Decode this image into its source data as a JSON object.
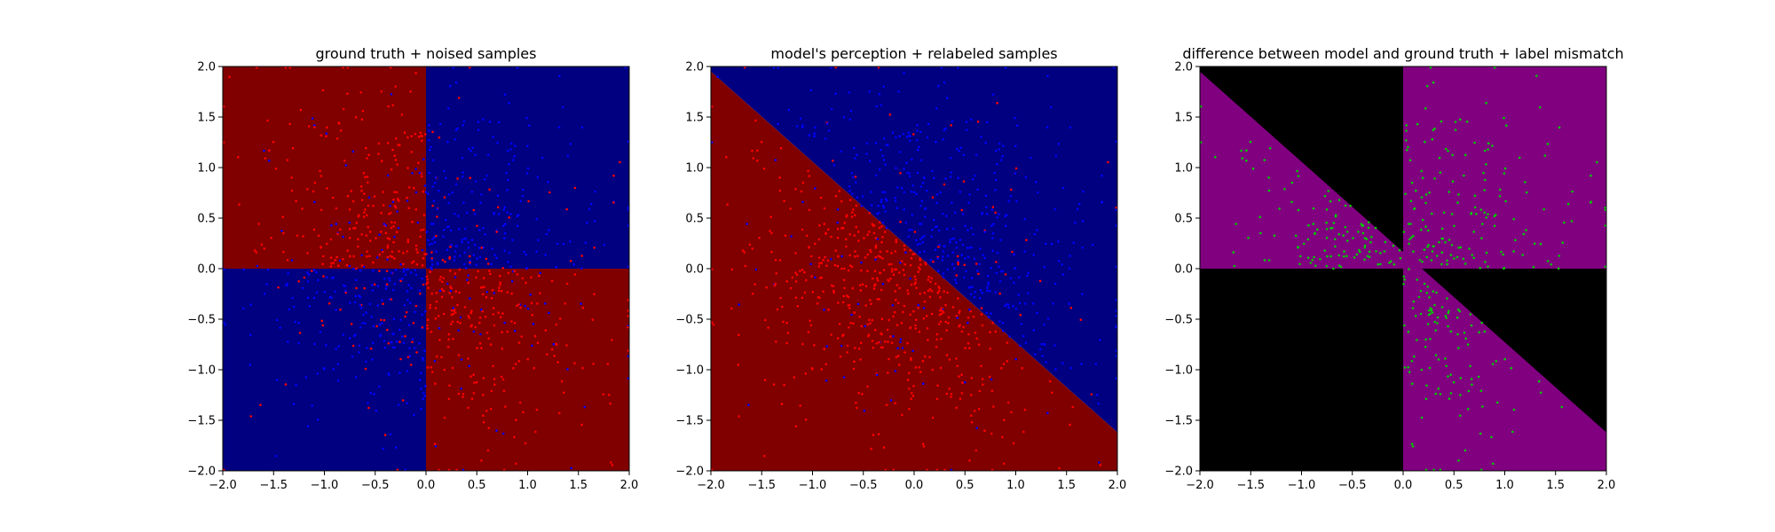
{
  "chart_data": [
    {
      "type": "scatter",
      "title": "ground truth + noised samples",
      "xlim": [
        -2.0,
        2.0
      ],
      "ylim": [
        -2.0,
        2.0
      ],
      "x_ticks": [
        "−2.0",
        "−1.5",
        "−1.0",
        "−0.5",
        "0.0",
        "0.5",
        "1.0",
        "1.5",
        "2.0"
      ],
      "y_ticks": [
        "−2.0",
        "−1.5",
        "−1.0",
        "−0.5",
        "0.0",
        "0.5",
        "1.0",
        "1.5",
        "2.0"
      ],
      "background": "xor quadrants: red where x*y<0, blue where x*y>0",
      "regions": [
        {
          "rule": "x<0,y>0",
          "color": "#800000"
        },
        {
          "rule": "x>0,y>0",
          "color": "#000080"
        },
        {
          "rule": "x<0,y<0",
          "color": "#000080"
        },
        {
          "rule": "x>0,y<0",
          "color": "#800000"
        }
      ],
      "point_colors": {
        "class_a": "#ff0000",
        "class_b": "#0000ff"
      },
      "n_points": 1000,
      "grid": false,
      "legend": "none"
    },
    {
      "type": "scatter",
      "title": "model's perception + relabeled samples",
      "xlim": [
        -2.0,
        2.0
      ],
      "ylim": [
        -2.0,
        2.0
      ],
      "x_ticks": [
        "−2.0",
        "−1.5",
        "−1.0",
        "−0.5",
        "0.0",
        "0.5",
        "1.0",
        "1.5",
        "2.0"
      ],
      "y_ticks": [
        "−2.0",
        "−1.5",
        "−1.0",
        "−0.5",
        "0.0",
        "0.5",
        "1.0",
        "1.5",
        "2.0"
      ],
      "background": "linear boundary: blue above line, red below",
      "boundary_line": {
        "x": [
          -2.0,
          2.0
        ],
        "y": [
          1.95,
          -1.62
        ]
      },
      "regions": [
        {
          "rule": "above boundary",
          "color": "#000080"
        },
        {
          "rule": "below boundary",
          "color": "#800000"
        }
      ],
      "point_colors": {
        "class_a": "#ff0000",
        "class_b": "#0000ff"
      },
      "n_points": 1000,
      "grid": false,
      "legend": "none"
    },
    {
      "type": "scatter",
      "title": "difference between model and ground truth + label mismatch",
      "xlim": [
        -2.0,
        2.0
      ],
      "ylim": [
        -2.0,
        2.0
      ],
      "x_ticks": [
        "−2.0",
        "−1.5",
        "−1.0",
        "−0.5",
        "0.0",
        "0.5",
        "1.0",
        "1.5",
        "2.0"
      ],
      "y_ticks": [
        "−2.0",
        "−1.5",
        "−1.0",
        "−0.5",
        "0.0",
        "0.5",
        "1.0",
        "1.5",
        "2.0"
      ],
      "background": "purple where model disagrees with ground truth, black where it agrees",
      "regions": [
        {
          "rule": "disagree",
          "color": "#800080"
        },
        {
          "rule": "agree",
          "color": "#000000"
        }
      ],
      "point_colors": {
        "mismatch": "#00cc00"
      },
      "n_points": 420,
      "grid": false,
      "legend": "none"
    }
  ]
}
